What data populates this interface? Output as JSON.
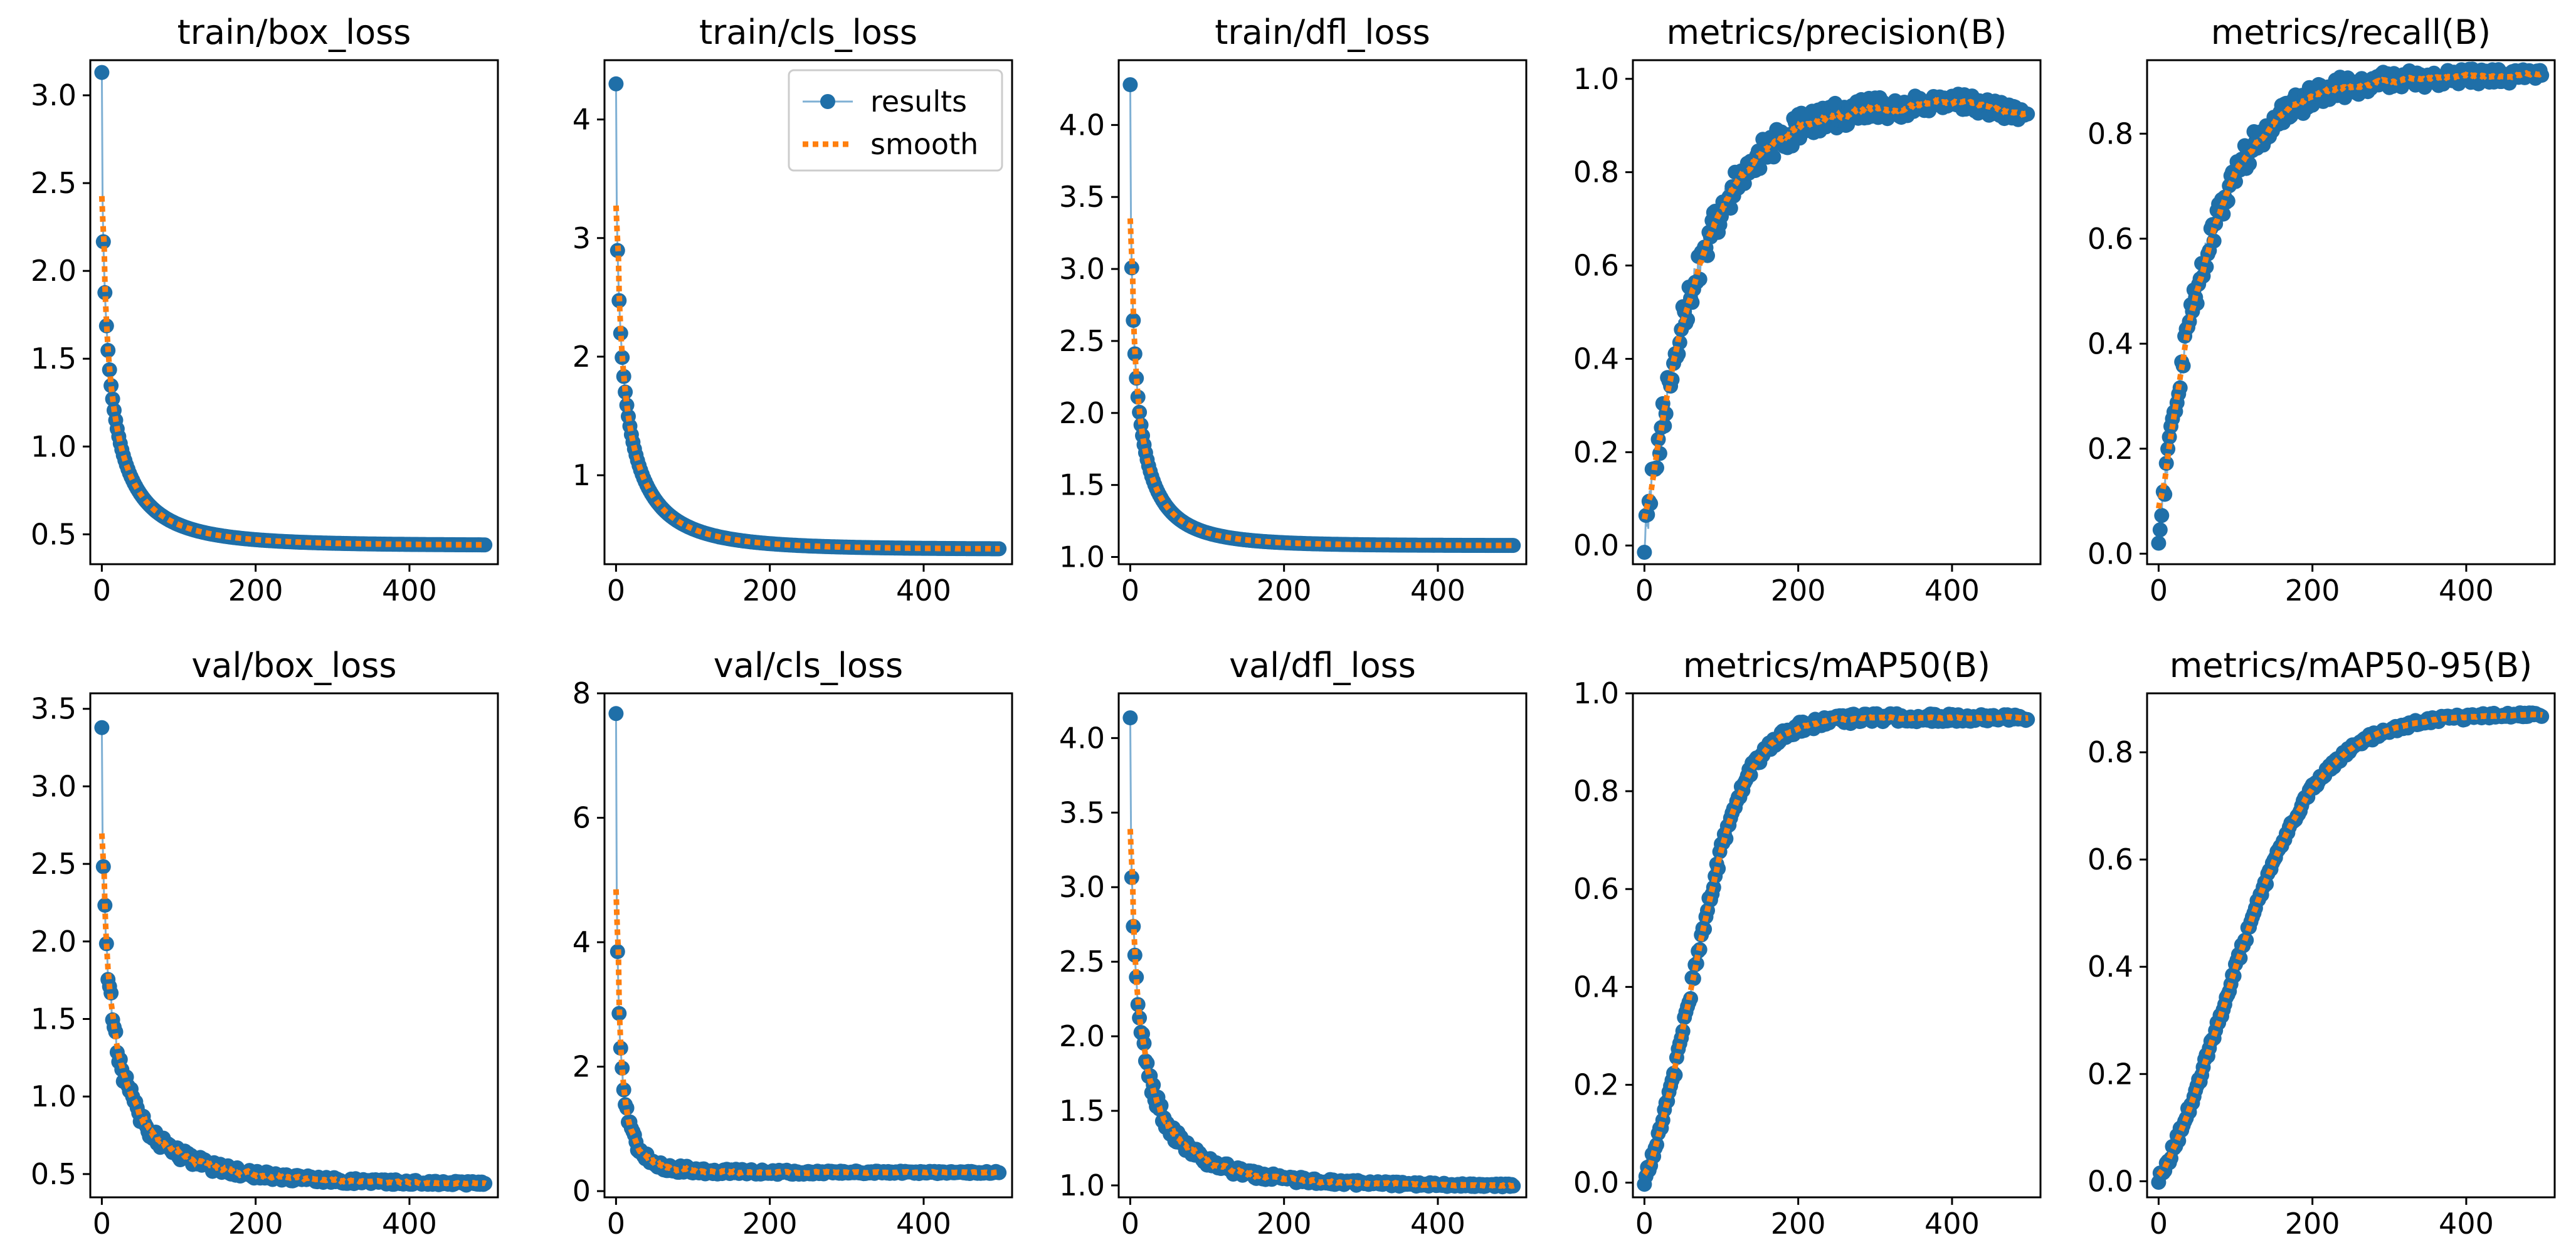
{
  "colors": {
    "results": "#1f6fa8",
    "results_line": "#7fb0d4",
    "smooth": "#ff7f0e",
    "axes": "#000000",
    "background": "#ffffff"
  },
  "legend": {
    "results": "results",
    "smooth": "smooth",
    "placement": "top-right",
    "panel_index": 1
  },
  "chart_data": [
    {
      "type": "line",
      "title": "train/box_loss",
      "xlabel": "",
      "ylabel": "",
      "xlim": [
        -15,
        515
      ],
      "ylim": [
        0.33,
        3.2
      ],
      "xticks": [
        0,
        200,
        400
      ],
      "yticks": [
        0.5,
        1.0,
        1.5,
        2.0,
        2.5,
        3.0
      ],
      "xtick_labels": [
        "0",
        "200",
        "400"
      ],
      "ytick_labels": [
        "0.5",
        "1.0",
        "1.5",
        "2.0",
        "2.5",
        "3.0"
      ],
      "curve": {
        "start": 3.13,
        "end": 0.44,
        "shape": "decay",
        "k": 7,
        "floor": 0.3,
        "wiggle": 0.0
      },
      "series": [
        {
          "name": "results"
        },
        {
          "name": "smooth"
        }
      ]
    },
    {
      "type": "line",
      "title": "train/cls_loss",
      "xlabel": "",
      "ylabel": "",
      "xlim": [
        -15,
        515
      ],
      "ylim": [
        0.25,
        4.5
      ],
      "xticks": [
        0,
        200,
        400
      ],
      "yticks": [
        1,
        2,
        3,
        4
      ],
      "xtick_labels": [
        "0",
        "200",
        "400"
      ],
      "ytick_labels": [
        "1",
        "2",
        "3",
        "4"
      ],
      "curve": {
        "start": 4.3,
        "end": 0.38,
        "shape": "decay",
        "k": 7,
        "floor": 0.2,
        "wiggle": 0.0
      },
      "series": [
        {
          "name": "results"
        },
        {
          "name": "smooth"
        }
      ]
    },
    {
      "type": "line",
      "title": "train/dfl_loss",
      "xlabel": "",
      "ylabel": "",
      "xlim": [
        -15,
        515
      ],
      "ylim": [
        0.95,
        4.45
      ],
      "xticks": [
        0,
        200,
        400
      ],
      "yticks": [
        1.0,
        1.5,
        2.0,
        2.5,
        3.0,
        3.5,
        4.0
      ],
      "xtick_labels": [
        "0",
        "200",
        "400"
      ],
      "ytick_labels": [
        "1.0",
        "1.5",
        "2.0",
        "2.5",
        "3.0",
        "3.5",
        "4.0"
      ],
      "curve": {
        "start": 4.28,
        "end": 1.08,
        "shape": "decay",
        "k": 8,
        "floor": 0.95,
        "wiggle": 0.0
      },
      "series": [
        {
          "name": "results"
        },
        {
          "name": "smooth"
        }
      ]
    },
    {
      "type": "line",
      "title": "metrics/precision(B)",
      "xlabel": "",
      "ylabel": "",
      "xlim": [
        -15,
        515
      ],
      "ylim": [
        -0.04,
        1.04
      ],
      "xticks": [
        0,
        200,
        400
      ],
      "yticks": [
        0.0,
        0.2,
        0.4,
        0.6,
        0.8,
        1.0
      ],
      "xtick_labels": [
        "0",
        "200",
        "400"
      ],
      "ytick_labels": [
        "0.0",
        "0.2",
        "0.4",
        "0.6",
        "0.8",
        "1.0"
      ],
      "curve": {
        "start": 0.0,
        "end": 0.95,
        "shape": "rise",
        "k": 3.2,
        "wiggle": 0.04,
        "tail_drop": 0.03
      },
      "series": [
        {
          "name": "results"
        },
        {
          "name": "smooth"
        }
      ]
    },
    {
      "type": "line",
      "title": "metrics/recall(B)",
      "xlabel": "",
      "ylabel": "",
      "xlim": [
        -15,
        515
      ],
      "ylim": [
        -0.02,
        0.94
      ],
      "xticks": [
        0,
        200,
        400
      ],
      "yticks": [
        0.0,
        0.2,
        0.4,
        0.6,
        0.8
      ],
      "xtick_labels": [
        "0",
        "200",
        "400"
      ],
      "ytick_labels": [
        "0.0",
        "0.2",
        "0.4",
        "0.6",
        "0.8"
      ],
      "curve": {
        "start": 0.03,
        "end": 0.91,
        "shape": "rise",
        "k": 3.5,
        "wiggle": 0.03,
        "tail_drop": 0.0
      },
      "series": [
        {
          "name": "results"
        },
        {
          "name": "smooth"
        }
      ]
    },
    {
      "type": "line",
      "title": "val/box_loss",
      "xlabel": "",
      "ylabel": "",
      "xlim": [
        -15,
        515
      ],
      "ylim": [
        0.35,
        3.6
      ],
      "xticks": [
        0,
        200,
        400
      ],
      "yticks": [
        0.5,
        1.0,
        1.5,
        2.0,
        2.5,
        3.0,
        3.5
      ],
      "xtick_labels": [
        "0",
        "200",
        "400"
      ],
      "ytick_labels": [
        "0.5",
        "1.0",
        "1.5",
        "2.0",
        "2.5",
        "3.0",
        "3.5"
      ],
      "curve": {
        "start": 3.4,
        "end": 0.44,
        "shape": "decay",
        "k": 6,
        "floor": 0.4,
        "wiggle": 0.06
      },
      "series": [
        {
          "name": "results"
        },
        {
          "name": "smooth"
        }
      ]
    },
    {
      "type": "line",
      "title": "val/cls_loss",
      "xlabel": "",
      "ylabel": "",
      "xlim": [
        -15,
        515
      ],
      "ylim": [
        -0.1,
        8.0
      ],
      "xticks": [
        0,
        200,
        400
      ],
      "yticks": [
        0,
        2,
        4,
        6,
        8
      ],
      "xtick_labels": [
        "0",
        "200",
        "400"
      ],
      "ytick_labels": [
        "0",
        "2",
        "4",
        "6",
        "8"
      ],
      "curve": {
        "start": 7.7,
        "end": 0.3,
        "shape": "decay",
        "k": 12,
        "floor": 0.3,
        "wiggle": 0.08
      },
      "series": [
        {
          "name": "results"
        },
        {
          "name": "smooth"
        }
      ]
    },
    {
      "type": "line",
      "title": "val/dfl_loss",
      "xlabel": "",
      "ylabel": "",
      "xlim": [
        -15,
        515
      ],
      "ylim": [
        0.92,
        4.3
      ],
      "xticks": [
        0,
        200,
        400
      ],
      "yticks": [
        1.0,
        1.5,
        2.0,
        2.5,
        3.0,
        3.5,
        4.0
      ],
      "xtick_labels": [
        "0",
        "200",
        "400"
      ],
      "ytick_labels": [
        "1.0",
        "1.5",
        "2.0",
        "2.5",
        "3.0",
        "3.5",
        "4.0"
      ],
      "curve": {
        "start": 4.15,
        "end": 1.0,
        "shape": "decay",
        "k": 6.5,
        "floor": 0.98,
        "wiggle": 0.05
      },
      "series": [
        {
          "name": "results"
        },
        {
          "name": "smooth"
        }
      ]
    },
    {
      "type": "line",
      "title": "metrics/mAP50(B)",
      "xlabel": "",
      "ylabel": "",
      "xlim": [
        -15,
        515
      ],
      "ylim": [
        -0.03,
        1.0
      ],
      "xticks": [
        0,
        200,
        400
      ],
      "yticks": [
        0.0,
        0.2,
        0.4,
        0.6,
        0.8,
        1.0
      ],
      "xtick_labels": [
        "0",
        "200",
        "400"
      ],
      "ytick_labels": [
        "0.0",
        "0.2",
        "0.4",
        "0.6",
        "0.8",
        "1.0"
      ],
      "curve": {
        "start": 0.0,
        "end": 0.95,
        "shape": "sigmoid",
        "mid": 60,
        "scale": 35,
        "wiggle": 0.015,
        "tail_drop": 0.0
      },
      "series": [
        {
          "name": "results"
        },
        {
          "name": "smooth"
        }
      ]
    },
    {
      "type": "line",
      "title": "metrics/mAP50-95(B)",
      "xlabel": "",
      "ylabel": "",
      "xlim": [
        -15,
        515
      ],
      "ylim": [
        -0.03,
        0.91
      ],
      "xticks": [
        0,
        200,
        400
      ],
      "yticks": [
        0.0,
        0.2,
        0.4,
        0.6,
        0.8
      ],
      "xtick_labels": [
        "0",
        "200",
        "400"
      ],
      "ytick_labels": [
        "0.0",
        "0.2",
        "0.4",
        "0.6",
        "0.8"
      ],
      "curve": {
        "start": 0.0,
        "end": 0.87,
        "shape": "sigmoid",
        "mid": 85,
        "scale": 60,
        "wiggle": 0.01,
        "tail_drop": 0.0
      },
      "series": [
        {
          "name": "results"
        },
        {
          "name": "smooth"
        }
      ]
    }
  ]
}
